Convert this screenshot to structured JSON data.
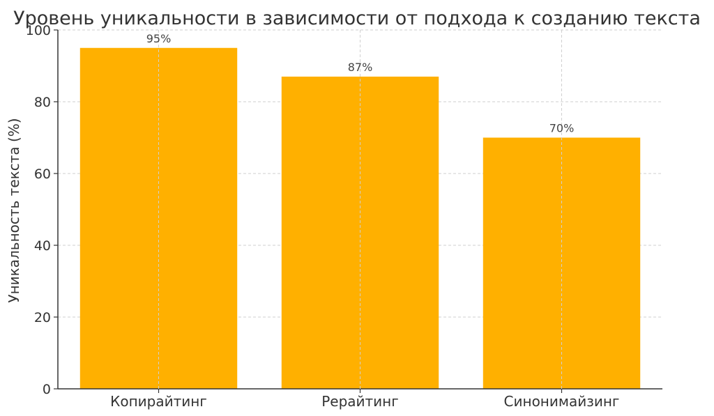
{
  "chart_data": {
    "type": "bar",
    "title": "Уровень уникальности в зависимости от подхода к созданию текста",
    "xlabel": "",
    "ylabel": "Уникальность текста (%)",
    "categories": [
      "Копирайтинг",
      "Рерайтинг",
      "Синонимайзинг"
    ],
    "values": [
      95,
      87,
      70
    ],
    "data_labels": [
      "95%",
      "87%",
      "70%"
    ],
    "ylim": [
      0,
      100
    ],
    "yticks": [
      0,
      20,
      40,
      60,
      80,
      100
    ],
    "ytick_labels": [
      "0",
      "20",
      "40",
      "60",
      "80",
      "100"
    ],
    "grid": true,
    "bar_color": "#FFB000",
    "legend": "none"
  }
}
